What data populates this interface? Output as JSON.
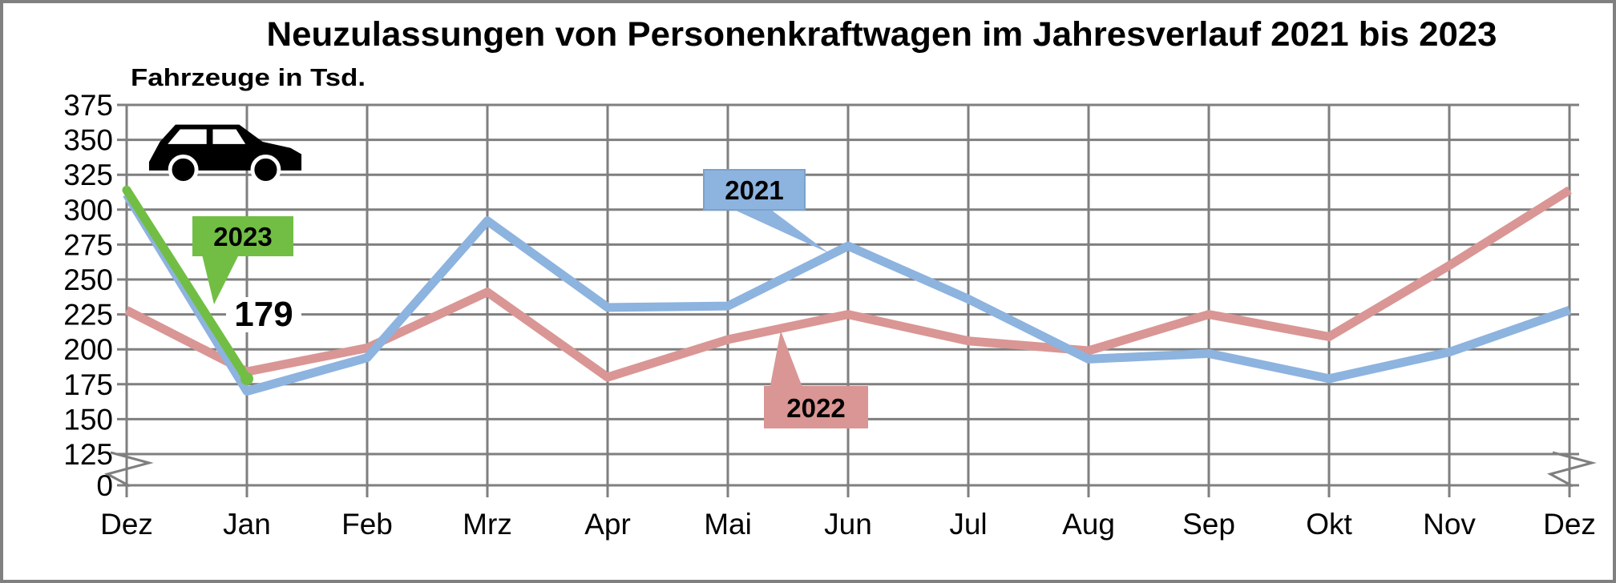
{
  "frame": {
    "border_color": "#808080",
    "background_color": "#FFFFFF",
    "gridline_color": "#7F7F7F"
  },
  "chart_data": {
    "type": "line",
    "title": "Neuzulassungen von Personenkraftwagen im Jahresverlauf 2021 bis 2023",
    "ylabel": "Fahrzeuge in Tsd.",
    "xlabel": "",
    "grid": true,
    "axis_break": true,
    "y_ticks": [
      375,
      350,
      325,
      300,
      275,
      250,
      225,
      200,
      175,
      150,
      125,
      0
    ],
    "ylim": [
      0,
      375
    ],
    "categories": [
      "Dez",
      "Jan",
      "Feb",
      "Mrz",
      "Apr",
      "Mai",
      "Jun",
      "Jul",
      "Aug",
      "Sep",
      "Okt",
      "Nov",
      "Dez"
    ],
    "series": [
      {
        "name": "2021",
        "color": "#8DB3DF",
        "values": [
          311,
          170,
          194,
          292,
          230,
          231,
          274,
          236,
          193,
          197,
          179,
          198,
          228
        ]
      },
      {
        "name": "2022",
        "color": "#D99694",
        "values": [
          228,
          184,
          201,
          241,
          180,
          207,
          225,
          206,
          199,
          225,
          209,
          260,
          314
        ]
      },
      {
        "name": "2023",
        "color": "#72BE44",
        "values": [
          314,
          179
        ],
        "end_marker": true
      }
    ],
    "annotation": {
      "text": "179",
      "value": 179,
      "month": "Jan"
    },
    "icon": "car-icon",
    "legend_position": "callouts-on-chart"
  }
}
